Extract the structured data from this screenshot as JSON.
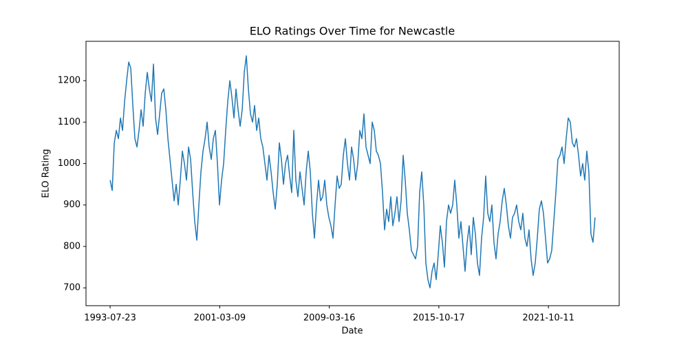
{
  "chart_data": {
    "type": "line",
    "title": "ELO Ratings Over Time for Newcastle",
    "xlabel": "Date",
    "ylabel": "ELO Rating",
    "color": "#1f77b4",
    "values": [
      960,
      935,
      1050,
      1080,
      1060,
      1110,
      1080,
      1150,
      1200,
      1245,
      1230,
      1140,
      1060,
      1040,
      1080,
      1130,
      1090,
      1170,
      1220,
      1180,
      1150,
      1240,
      1110,
      1070,
      1120,
      1170,
      1180,
      1130,
      1060,
      1010,
      960,
      910,
      950,
      900,
      960,
      1030,
      1000,
      960,
      1040,
      1010,
      930,
      860,
      815,
      900,
      980,
      1030,
      1060,
      1100,
      1040,
      1010,
      1060,
      1080,
      1000,
      900,
      960,
      1000,
      1080,
      1150,
      1200,
      1160,
      1110,
      1180,
      1130,
      1090,
      1130,
      1220,
      1260,
      1180,
      1120,
      1100,
      1140,
      1080,
      1110,
      1060,
      1040,
      1000,
      960,
      1020,
      980,
      930,
      890,
      950,
      1050,
      1010,
      950,
      1000,
      1020,
      970,
      930,
      1080,
      960,
      920,
      980,
      940,
      900,
      980,
      1030,
      980,
      880,
      820,
      900,
      960,
      910,
      920,
      960,
      900,
      870,
      850,
      820,
      900,
      970,
      940,
      950,
      1020,
      1060,
      1000,
      960,
      1040,
      1010,
      960,
      1000,
      1080,
      1060,
      1120,
      1040,
      1020,
      1000,
      1100,
      1080,
      1030,
      1020,
      1000,
      930,
      840,
      890,
      860,
      920,
      850,
      880,
      920,
      860,
      910,
      1020,
      960,
      880,
      840,
      790,
      780,
      770,
      800,
      930,
      980,
      900,
      760,
      720,
      700,
      740,
      760,
      720,
      780,
      850,
      810,
      750,
      860,
      900,
      880,
      900,
      960,
      900,
      820,
      860,
      800,
      740,
      810,
      850,
      780,
      870,
      830,
      760,
      730,
      820,
      870,
      970,
      880,
      860,
      900,
      810,
      770,
      830,
      860,
      910,
      940,
      900,
      850,
      820,
      870,
      880,
      900,
      860,
      840,
      880,
      820,
      800,
      840,
      770,
      730,
      760,
      820,
      890,
      910,
      880,
      820,
      760,
      770,
      790,
      860,
      930,
      1010,
      1020,
      1040,
      1000,
      1060,
      1110,
      1100,
      1050,
      1040,
      1060,
      1020,
      970,
      1000,
      960,
      1030,
      980,
      830,
      810,
      870
    ],
    "xlim": [
      -11.7,
      246.7
    ],
    "xticks": [
      {
        "value": 0,
        "label": "1993-07-23"
      },
      {
        "value": 53.1,
        "label": "2001-03-09"
      },
      {
        "value": 106.2,
        "label": "2009-03-16"
      },
      {
        "value": 159.3,
        "label": "2015-10-17"
      },
      {
        "value": 212.4,
        "label": "2021-10-11"
      }
    ],
    "ylim": [
      657,
      1295
    ],
    "yticks": [
      700,
      800,
      900,
      1000,
      1100,
      1200
    ]
  }
}
